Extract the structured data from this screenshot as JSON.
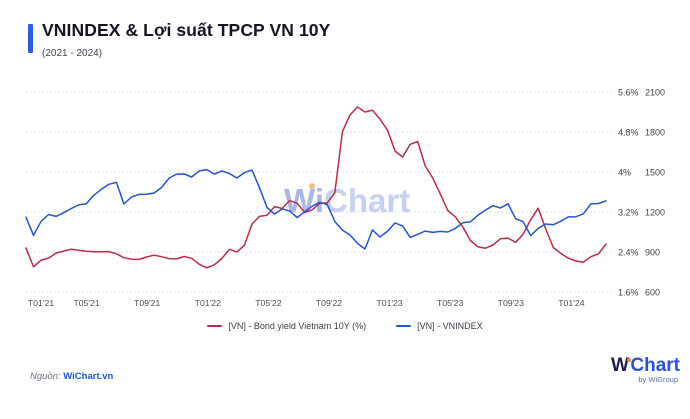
{
  "header": {
    "title": "VNINDEX & Lợi suất TPCP VN 10Y",
    "subtitle": "(2021 - 2024)",
    "accent_color": "#2f5be7"
  },
  "watermark": {
    "part1": "Wi",
    "part2": "Chart",
    "part1_color": "#a8b6e8",
    "part2_color": "#c6d0f0",
    "dot_color": "#f3c089"
  },
  "footer": {
    "source_prefix": "Nguồn:",
    "source_link": "WiChart.vn",
    "logo": {
      "w": "W",
      "chart": "Chart",
      "by": "by WiGroup"
    }
  },
  "chart_data": {
    "type": "line",
    "title": "VNINDEX & Lợi suất TPCP VN 10Y (2021 - 2024)",
    "grid": "horizontal-dotted",
    "legend_position": "bottom",
    "x_tick_labels": [
      "T01'21",
      "T05'21",
      "T09'21",
      "T01'22",
      "T05'22",
      "T09'22",
      "T01'23",
      "T05'23",
      "T09'23",
      "T01'24"
    ],
    "period": {
      "start": "2021-01",
      "end": "2024-03",
      "points_per_month": 2
    },
    "right_axis_pct": {
      "tick_labels": [
        "5.6%",
        "4.8%",
        "4%",
        "3.2%",
        "2.4%",
        "1.6%"
      ],
      "tick_values": [
        5.6,
        4.8,
        4.0,
        3.2,
        2.4,
        1.6
      ],
      "range": [
        1.6,
        5.6
      ]
    },
    "right_axis_index": {
      "tick_labels": [
        "2100",
        "1800",
        "1500",
        "1200",
        "900",
        "600"
      ],
      "tick_values": [
        2100,
        1800,
        1500,
        1200,
        900,
        600
      ],
      "range": [
        600,
        2100
      ]
    },
    "series": [
      {
        "name": "[VN] - Bond yield Vietnam 10Y (%)",
        "axis": "pct",
        "color": "#c02a46",
        "values": [
          2.48,
          2.12,
          2.25,
          2.3,
          2.38,
          2.42,
          2.45,
          2.42,
          2.4,
          2.38,
          2.42,
          2.4,
          2.36,
          2.3,
          2.28,
          2.25,
          2.3,
          2.35,
          2.32,
          2.28,
          2.25,
          2.3,
          2.25,
          2.18,
          2.08,
          2.15,
          2.25,
          2.45,
          2.4,
          2.55,
          2.95,
          3.1,
          3.15,
          3.3,
          3.25,
          3.4,
          3.35,
          3.2,
          3.25,
          3.35,
          3.4,
          3.6,
          4.8,
          5.15,
          5.3,
          5.2,
          5.25,
          5.05,
          4.85,
          4.4,
          4.3,
          4.55,
          4.6,
          4.1,
          3.9,
          3.55,
          3.25,
          3.1,
          2.9,
          2.65,
          2.52,
          2.48,
          2.55,
          2.65,
          2.7,
          2.62,
          2.75,
          3.05,
          3.25,
          2.85,
          2.5,
          2.35,
          2.28,
          2.24,
          2.21,
          2.3,
          2.38,
          2.56
        ]
      },
      {
        "name": "[VN] - VNINDEX",
        "axis": "index",
        "color": "#2453d6",
        "values": [
          1160,
          1030,
          1120,
          1170,
          1170,
          1190,
          1230,
          1240,
          1270,
          1320,
          1370,
          1405,
          1420,
          1250,
          1320,
          1330,
          1345,
          1340,
          1390,
          1440,
          1470,
          1480,
          1460,
          1498,
          1520,
          1480,
          1500,
          1490,
          1470,
          1492,
          1520,
          1370,
          1240,
          1170,
          1230,
          1197,
          1160,
          1206,
          1250,
          1280,
          1240,
          1132,
          1050,
          1027,
          960,
          911,
          1050,
          1007,
          1060,
          1111,
          1090,
          1024,
          1040,
          1064,
          1050,
          1049,
          1060,
          1075,
          1110,
          1120,
          1160,
          1222,
          1240,
          1224,
          1245,
          1154,
          1130,
          1028,
          1090,
          1094,
          1100,
          1129,
          1150,
          1164,
          1200,
          1252,
          1260,
          1284
        ]
      }
    ]
  }
}
